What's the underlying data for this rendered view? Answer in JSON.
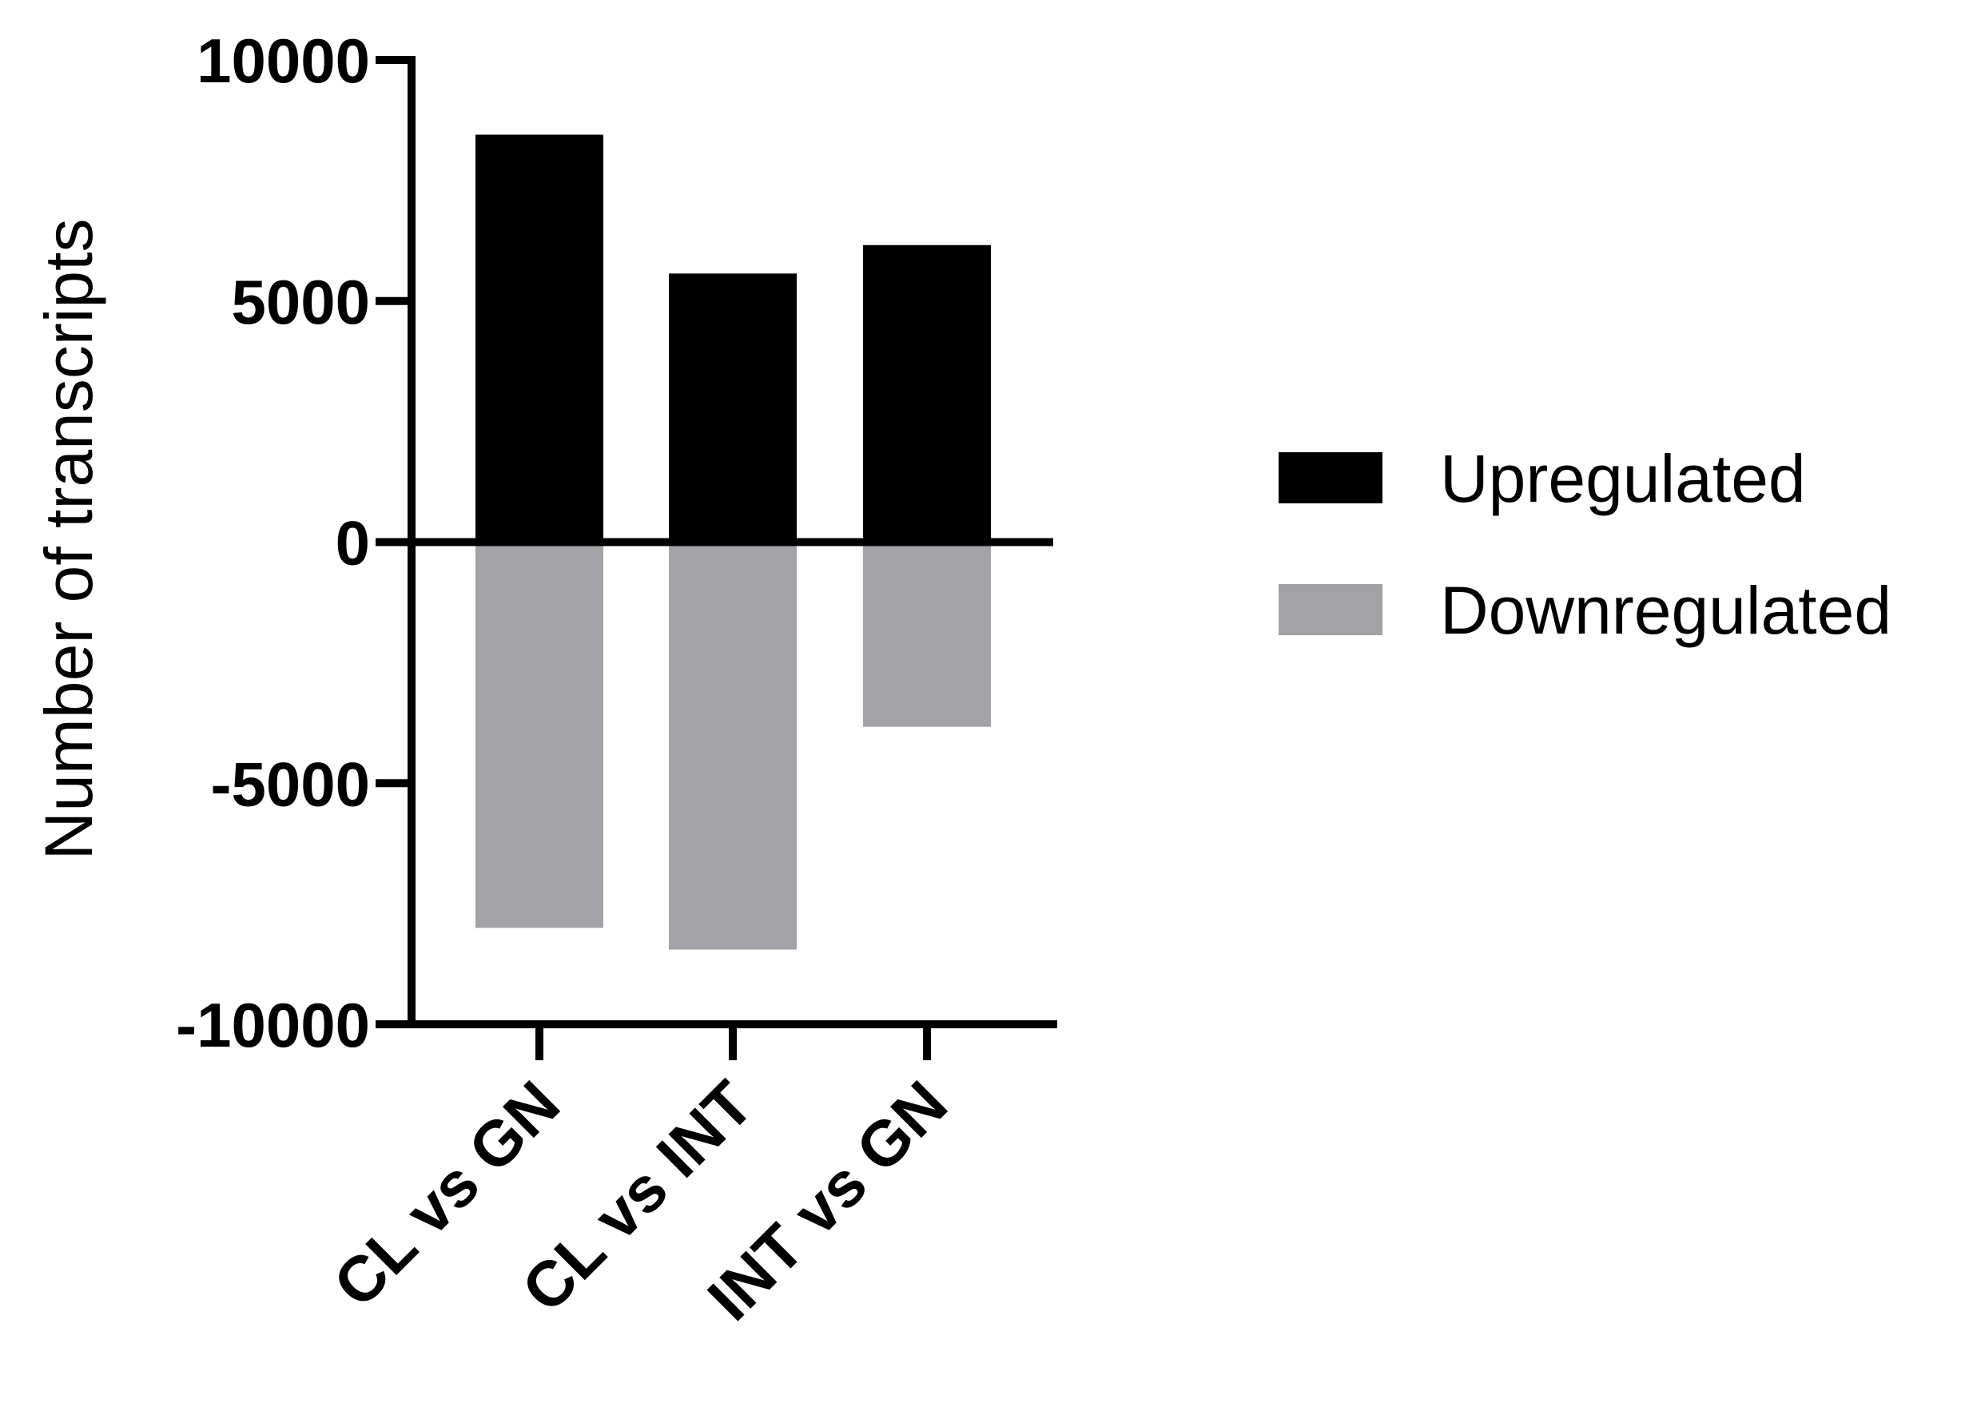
{
  "chart_data": {
    "type": "bar",
    "stacking": "diverging",
    "categories": [
      "CL vs GN",
      "CL vs INT",
      "INT vs GN"
    ],
    "series": [
      {
        "name": "Upregulated",
        "values": [
          8450,
          5570,
          6160
        ],
        "color": "#000000"
      },
      {
        "name": "Downregulated",
        "values": [
          -8000,
          -8450,
          -3830
        ],
        "color": "#a3a2a6"
      }
    ],
    "title": "",
    "xlabel": "",
    "ylabel": "Number of transcripts",
    "ylim": [
      -10000,
      10000
    ],
    "yticks": [
      -10000,
      -5000,
      0,
      5000,
      10000
    ],
    "grid": false,
    "legend_position": "right"
  }
}
